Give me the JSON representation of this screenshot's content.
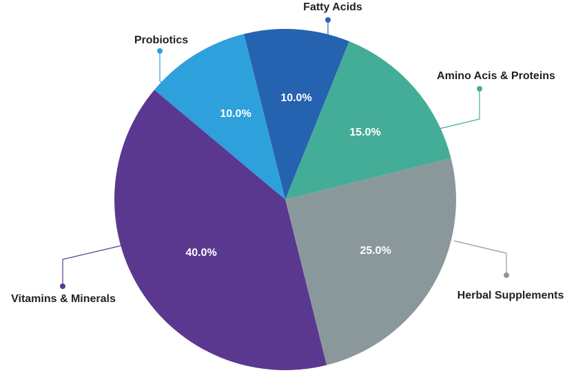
{
  "chart_data": {
    "type": "pie",
    "categories": [
      "Fatty Acids",
      "Amino Acis & Proteins",
      "Herbal Supplements",
      "Vitamins & Minerals",
      "Probiotics"
    ],
    "values": [
      10,
      15,
      25,
      40,
      10
    ],
    "value_labels": [
      "10.0%",
      "15.0%",
      "25.0%",
      "40.0%",
      "10.0%"
    ],
    "colors": [
      "#2563b0",
      "#43ad97",
      "#8a989c",
      "#5a3890",
      "#2ea0dc"
    ]
  }
}
